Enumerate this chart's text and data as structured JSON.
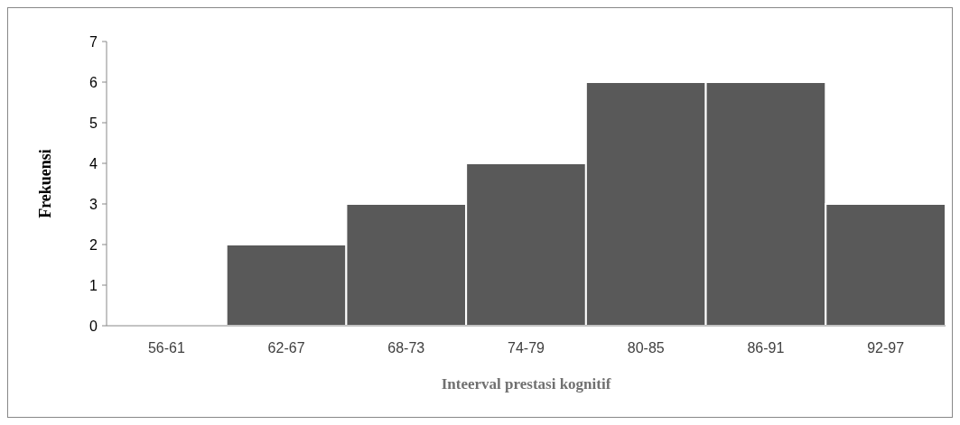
{
  "chart_data": {
    "type": "bar",
    "categories": [
      "56-61",
      "62-67",
      "68-73",
      "74-79",
      "80-85",
      "86-91",
      "92-97"
    ],
    "values": [
      0,
      2,
      3,
      4,
      6,
      6,
      3
    ],
    "color": "#595959",
    "xlabel": "Inteerval prestasi kognitif",
    "ylabel": "Frekuensi",
    "ylim": [
      0,
      7
    ],
    "yticks": [
      0,
      1,
      2,
      3,
      4,
      5,
      6,
      7
    ],
    "grid": false
  }
}
